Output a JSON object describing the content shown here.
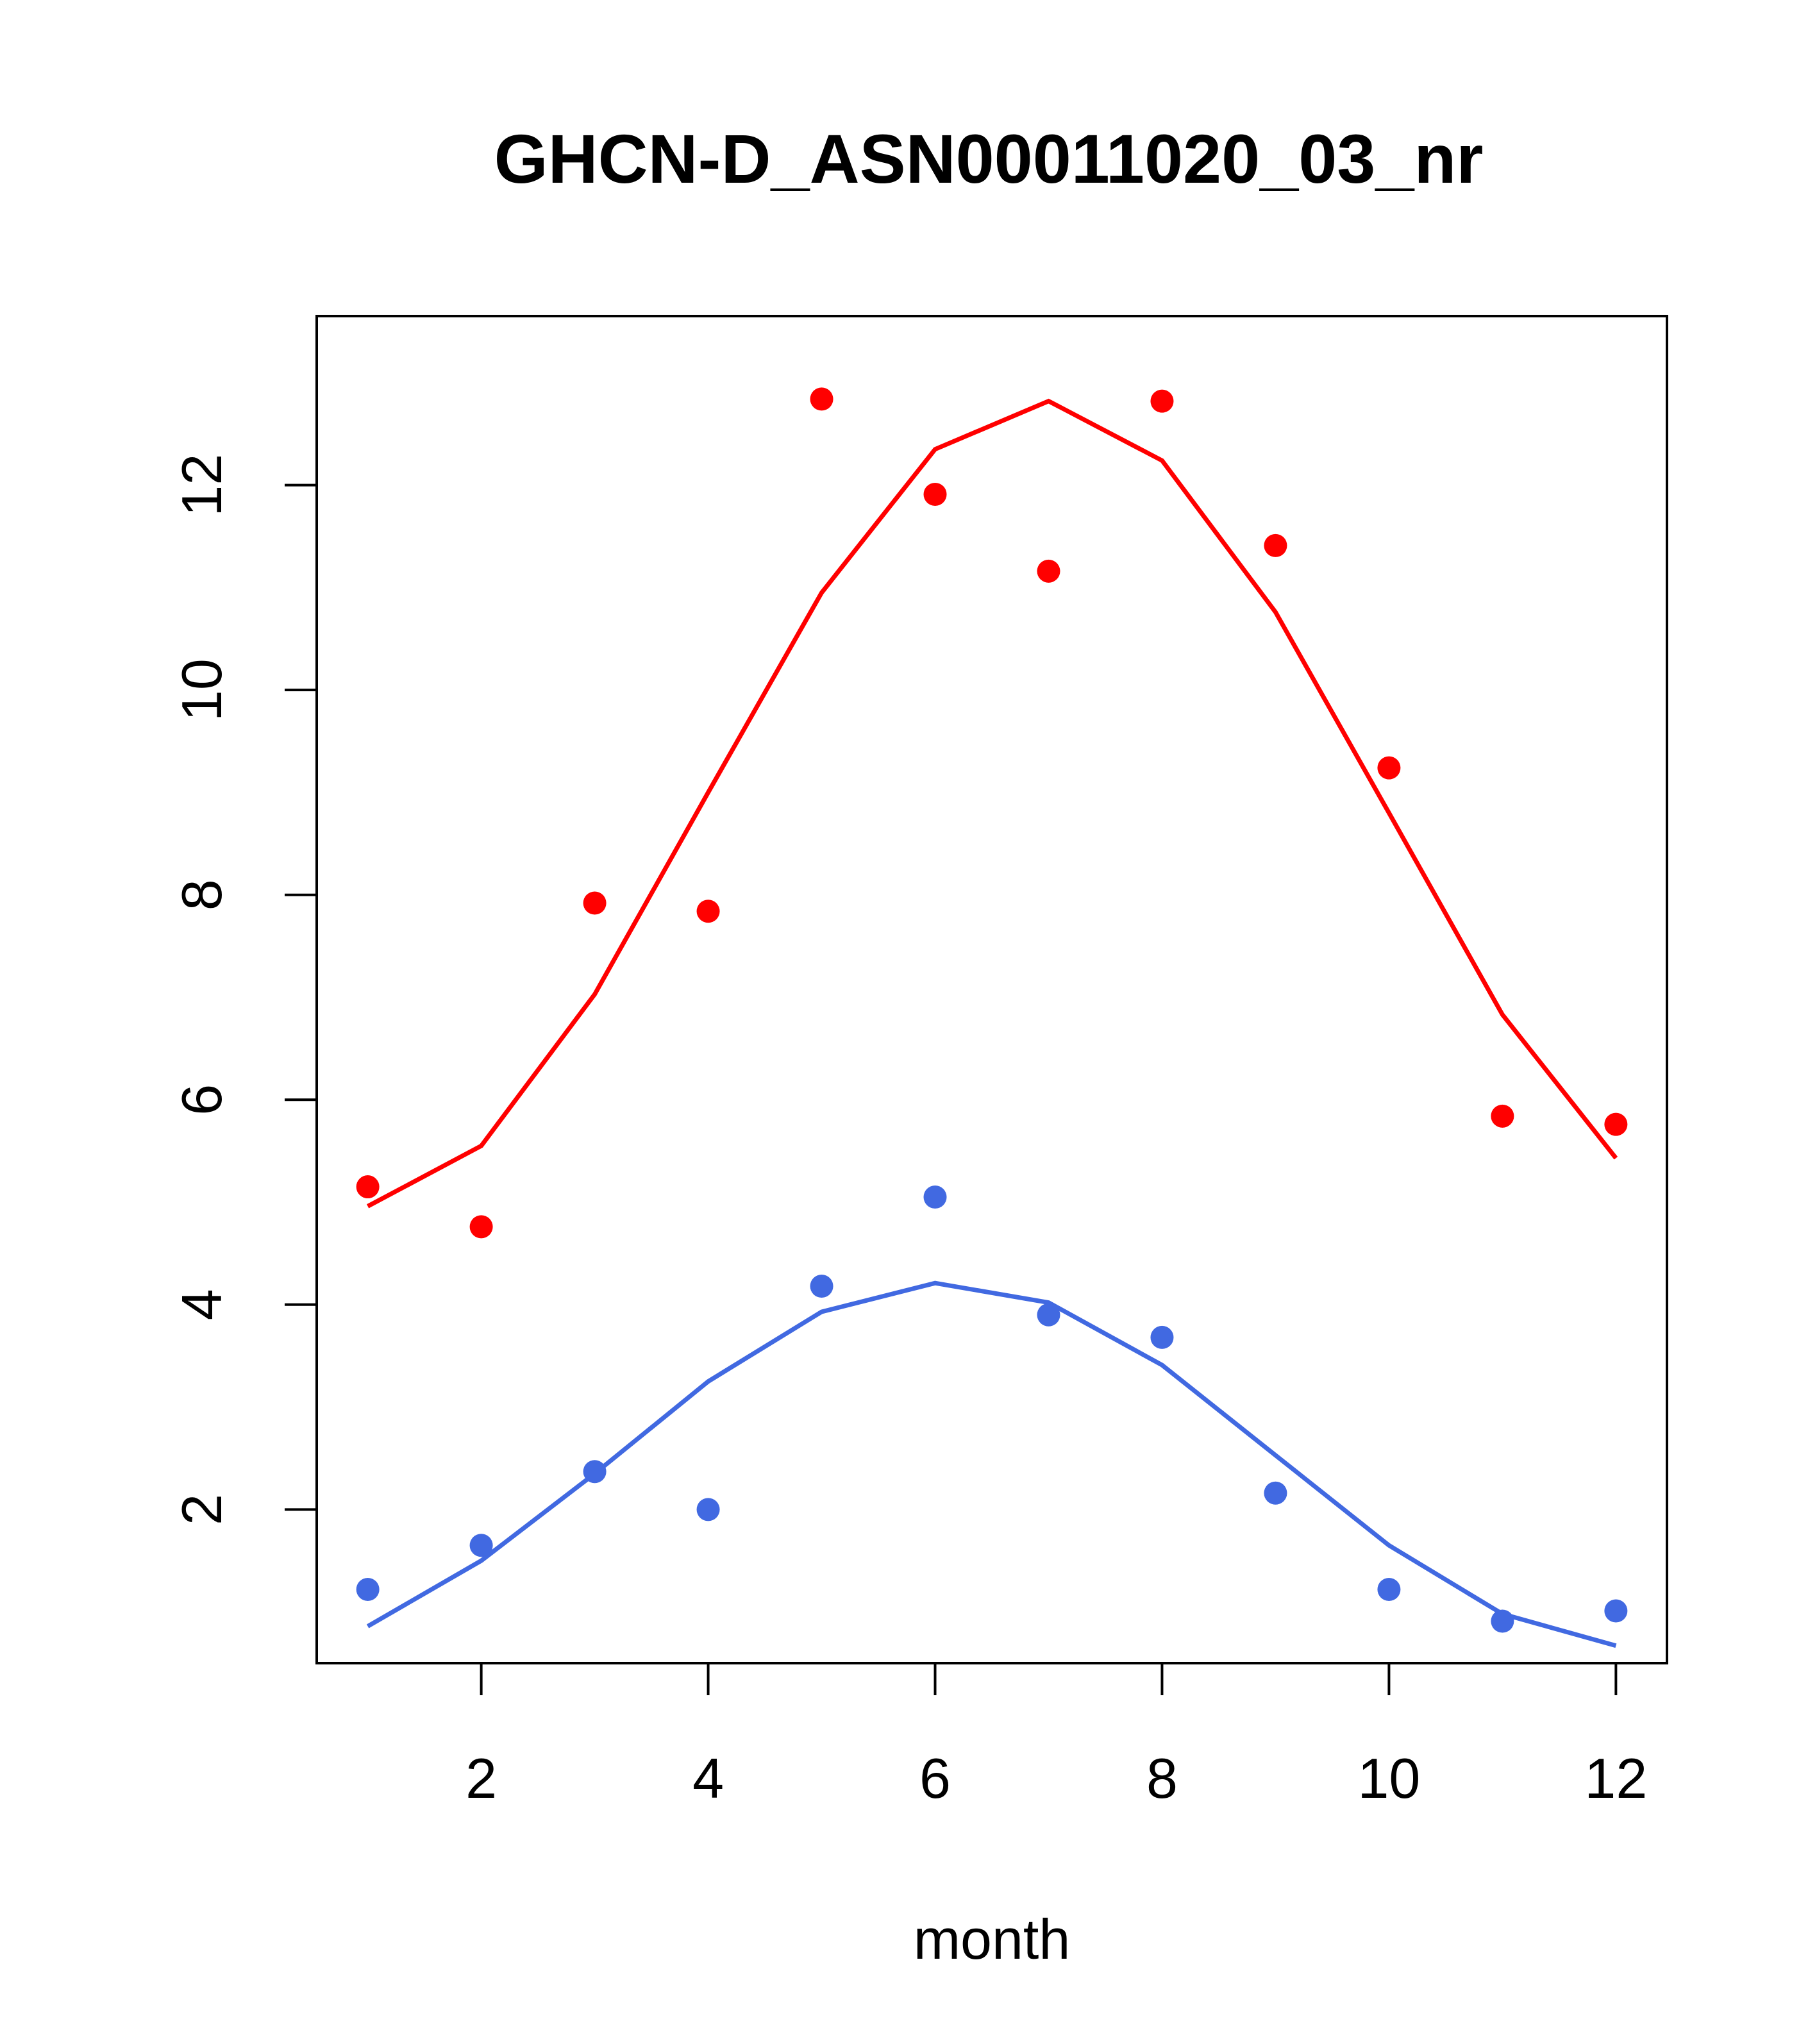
{
  "chart_data": {
    "type": "scatter",
    "title": "GHCN-D_ASN00011020_03_nr",
    "xlabel": "month",
    "ylabel": "",
    "xlim": [
      0.55,
      12.45
    ],
    "ylim": [
      0.5,
      13.65
    ],
    "xticks": [
      2,
      4,
      6,
      8,
      10,
      12
    ],
    "yticks": [
      2,
      4,
      6,
      8,
      10,
      12
    ],
    "grid": false,
    "legend": "none",
    "series": [
      {
        "color": "#ff0000",
        "x": [
          1,
          2,
          3,
          4,
          5,
          6,
          7,
          8,
          9,
          10,
          11,
          12
        ],
        "points": [
          5.15,
          4.76,
          7.92,
          7.84,
          12.84,
          11.91,
          11.16,
          12.82,
          11.41,
          9.24,
          5.84,
          5.76
        ],
        "fit": [
          4.96,
          5.55,
          7.03,
          9.0,
          10.95,
          12.35,
          12.82,
          12.24,
          10.76,
          8.8,
          6.83,
          5.43
        ]
      },
      {
        "color": "#4169e1",
        "x": [
          1,
          2,
          3,
          4,
          5,
          6,
          7,
          8,
          9,
          10,
          11,
          12
        ],
        "points": [
          1.22,
          1.65,
          2.37,
          2.0,
          4.18,
          5.05,
          3.9,
          3.68,
          2.16,
          1.22,
          0.91,
          1.01
        ],
        "fit": [
          0.86,
          1.5,
          2.35,
          3.25,
          3.93,
          4.21,
          4.02,
          3.41,
          2.53,
          1.65,
          0.98,
          0.67
        ]
      }
    ]
  }
}
